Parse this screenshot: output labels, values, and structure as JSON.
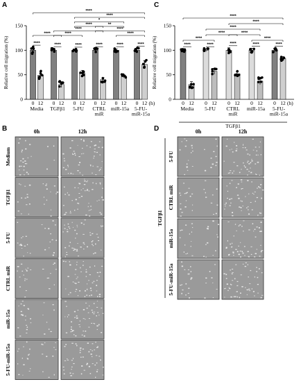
{
  "panels": {
    "A": "A",
    "B": "B",
    "C": "C",
    "D": "D"
  },
  "units": {
    "hours": "(h)"
  },
  "chart_data": [
    {
      "panel": "A",
      "type": "bar",
      "ylabel": "Relative cell migration (%)",
      "ylim": [
        0,
        150
      ],
      "yticks": [
        0,
        50,
        100,
        150
      ],
      "time_labels": [
        "0",
        "12"
      ],
      "groups": [
        "Media",
        "TGFβ1",
        "5-FU",
        "CTRL miR",
        "miR-15a",
        "5-FU-miR-15a"
      ],
      "group_labels": [
        [
          "Media"
        ],
        [
          "TGFβ1"
        ],
        [
          "5-FU"
        ],
        [
          "CTRL",
          "miR"
        ],
        [
          "miR-15a"
        ],
        [
          "5-FU-",
          "miR-15a"
        ]
      ],
      "values": [
        [
          100,
          49
        ],
        [
          100,
          30
        ],
        [
          100,
          53
        ],
        [
          100,
          40
        ],
        [
          100,
          47
        ],
        [
          100,
          71
        ]
      ],
      "errors": [
        [
          6,
          7
        ],
        [
          3,
          6
        ],
        [
          2,
          6
        ],
        [
          3,
          4
        ],
        [
          3,
          3
        ],
        [
          4,
          8
        ]
      ],
      "significance": [
        {
          "type": "pair",
          "group": 0,
          "label": "****"
        },
        {
          "type": "pair",
          "group": 1,
          "label": "****"
        },
        {
          "type": "pair",
          "group": 2,
          "label": "****"
        },
        {
          "type": "pair",
          "group": 3,
          "label": "****"
        },
        {
          "type": "pair",
          "group": 4,
          "label": "****"
        },
        {
          "type": "pair",
          "group": 5,
          "label": "****"
        },
        {
          "type": "between",
          "from": 0,
          "to": 1,
          "level": 0,
          "label": "****"
        },
        {
          "type": "between",
          "from": 1,
          "to": 2,
          "level": 0,
          "label": "****"
        },
        {
          "type": "between",
          "from": 1,
          "to": 3,
          "level": 1,
          "label": "****"
        },
        {
          "type": "between",
          "from": 2,
          "to": 3,
          "level": 2,
          "label": "****"
        },
        {
          "type": "between",
          "from": 3,
          "to": 4,
          "level": 2,
          "label": "**"
        },
        {
          "type": "between",
          "from": 2,
          "to": 4,
          "level": 3,
          "label": "*"
        },
        {
          "type": "between",
          "from": 4,
          "to": 5,
          "level": 0,
          "label": "****"
        },
        {
          "type": "between",
          "from": 3,
          "to": 5,
          "level": 1,
          "label": "****"
        },
        {
          "type": "between",
          "from": 2,
          "to": 5,
          "level": 4,
          "label": "****"
        },
        {
          "type": "between",
          "from": 0,
          "to": 5,
          "level": 5,
          "label": "****"
        }
      ]
    },
    {
      "panel": "C",
      "type": "bar",
      "ylabel": "Relative cell migration (%)",
      "ylim": [
        0,
        150
      ],
      "yticks": [
        0,
        50,
        100,
        150
      ],
      "time_labels": [
        "0",
        "12"
      ],
      "groups": [
        "Media",
        "5-FU",
        "CTRL miR",
        "miR-15a",
        "5-FU-miR-15a"
      ],
      "group_labels": [
        [
          "Media"
        ],
        [
          "5-FU"
        ],
        [
          "CTRL",
          "miR"
        ],
        [
          "miR-15a"
        ],
        [
          "5-FU-",
          "miR-15a"
        ]
      ],
      "bracket_label": "TGFβ1",
      "values": [
        [
          100,
          30
        ],
        [
          100,
          57
        ],
        [
          100,
          52
        ],
        [
          100,
          37
        ],
        [
          100,
          83
        ]
      ],
      "errors": [
        [
          3,
          6
        ],
        [
          3,
          6
        ],
        [
          5,
          4
        ],
        [
          4,
          7
        ],
        [
          4,
          4
        ]
      ],
      "significance": [
        {
          "type": "pair",
          "group": 0,
          "label": "****"
        },
        {
          "type": "pair",
          "group": 1,
          "label": "****"
        },
        {
          "type": "pair",
          "group": 2,
          "label": "****"
        },
        {
          "type": "pair",
          "group": 3,
          "label": "****"
        },
        {
          "type": "pair",
          "group": 4,
          "label": "****"
        },
        {
          "type": "between",
          "from": 0,
          "to": 1,
          "level": 0,
          "label": "****"
        },
        {
          "type": "between",
          "from": 1,
          "to": 2,
          "level": 1,
          "label": "****"
        },
        {
          "type": "between",
          "from": 2,
          "to": 3,
          "level": 1,
          "label": "****"
        },
        {
          "type": "between",
          "from": 1,
          "to": 3,
          "level": 2,
          "label": "****"
        },
        {
          "type": "between",
          "from": 3,
          "to": 4,
          "level": 0,
          "label": "****"
        },
        {
          "type": "between",
          "from": 2,
          "to": 4,
          "level": 3,
          "label": "****"
        },
        {
          "type": "between",
          "from": 0,
          "to": 4,
          "level": 4,
          "label": "****"
        }
      ]
    }
  ],
  "scratch_panels": [
    {
      "panel": "B",
      "columns": [
        "0h",
        "12h"
      ],
      "rows": [
        "Medium",
        "TGFβ1",
        "5-FU",
        "CTRL miR",
        "miR-15a",
        "5-FU-miR-15a"
      ]
    },
    {
      "panel": "D",
      "columns": [
        "0h",
        "12h"
      ],
      "rows": [
        "5-FU",
        "CTRL miR",
        "miR-15a",
        "5-FU-miR-15a"
      ],
      "bracket_label": "TGFβ1"
    }
  ],
  "colors": {
    "bar0": "#808080",
    "bar12": "#cfcfcf",
    "bar0_light": "#dcdcdc",
    "bar12_light": "#bdbdbd",
    "axis": "#000000",
    "micro_bg": "#9a9a9a"
  }
}
